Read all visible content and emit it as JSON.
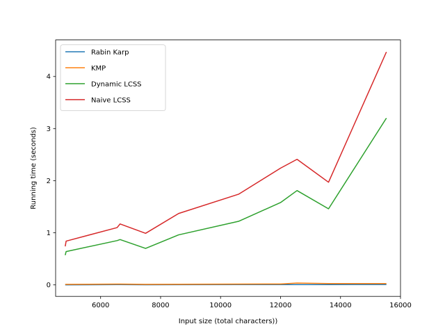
{
  "chart_data": {
    "type": "line",
    "title": "",
    "xlabel": "Input size (total characters))",
    "ylabel": "Running time (seconds)",
    "xlim": [
      4500,
      16000
    ],
    "ylim": [
      -0.22,
      4.7
    ],
    "xticks": [
      6000,
      8000,
      10000,
      12000,
      14000,
      16000
    ],
    "yticks": [
      0,
      1,
      2,
      3,
      4
    ],
    "grid": false,
    "legend_position": "top-left",
    "series": [
      {
        "name": "Rabin Karp",
        "color": "#1f77b4",
        "x": [
          4820,
          4850,
          6550,
          6650,
          7500,
          8600,
          10600,
          12000,
          12550,
          13600,
          15530
        ],
        "y": [
          0.0,
          0.0,
          0.005,
          0.005,
          0.003,
          0.004,
          0.005,
          0.005,
          0.006,
          0.006,
          0.008
        ]
      },
      {
        "name": "KMP",
        "color": "#ff7f0e",
        "x": [
          4820,
          4850,
          6550,
          6650,
          7500,
          8600,
          10600,
          12000,
          12550,
          13600,
          15530
        ],
        "y": [
          0.01,
          0.01,
          0.015,
          0.015,
          0.01,
          0.012,
          0.015,
          0.018,
          0.035,
          0.025,
          0.025
        ]
      },
      {
        "name": "Dynamic LCSS",
        "color": "#2ca02c",
        "x": [
          4820,
          4850,
          6550,
          6650,
          7500,
          8600,
          10600,
          12000,
          12550,
          13600,
          15530
        ],
        "y": [
          0.57,
          0.64,
          0.85,
          0.87,
          0.7,
          0.96,
          1.22,
          1.58,
          1.81,
          1.46,
          3.2
        ]
      },
      {
        "name": "Naive LCSS",
        "color": "#d62728",
        "x": [
          4820,
          4850,
          6550,
          6650,
          7500,
          8600,
          10600,
          12000,
          12550,
          13600,
          15530
        ],
        "y": [
          0.74,
          0.84,
          1.1,
          1.17,
          0.99,
          1.37,
          1.74,
          2.24,
          2.41,
          1.97,
          4.47
        ]
      }
    ]
  }
}
